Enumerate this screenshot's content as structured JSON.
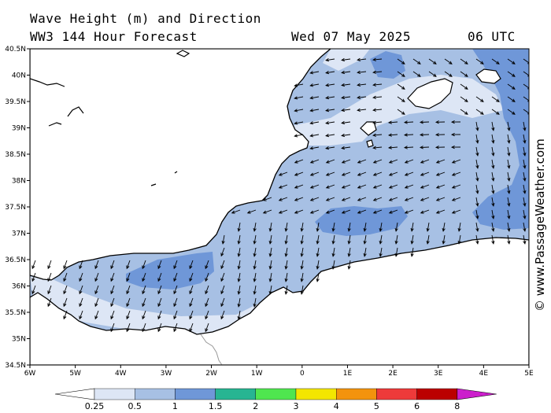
{
  "header": {
    "line1": "Wave Height (m) and Direction",
    "line2": "WW3 144 Hour Forecast",
    "date": "Wed 07 May 2025",
    "time": "06 UTC"
  },
  "watermark": "© www.PassageWeather.com",
  "map": {
    "lon_range": [
      -6,
      5
    ],
    "lat_range": [
      34.5,
      40.5
    ],
    "lat_labels": [
      "40.5N",
      "40N",
      "39.5N",
      "39N",
      "38.5N",
      "38N",
      "37.5N",
      "37N",
      "36.5N",
      "36N",
      "35.5N",
      "35N",
      "34.5N"
    ],
    "lon_labels": [
      "6W",
      "5W",
      "4W",
      "3W",
      "2W",
      "1W",
      "0",
      "1E",
      "2E",
      "3E",
      "4E",
      "5E"
    ],
    "land_color": "#ffffff",
    "coast_color": "#000000",
    "arrow_color": "#000000"
  },
  "colorbar": {
    "colors": [
      "#dde6f5",
      "#a7c0e4",
      "#6f97d8",
      "#27b592",
      "#4fe64f",
      "#f3e600",
      "#f3930d",
      "#ee3a3a",
      "#bb0000",
      "#cc1fcc"
    ],
    "labels": [
      "0.25",
      "0.5",
      "1",
      "1.5",
      "2",
      "3",
      "4",
      "5",
      "6",
      "8"
    ]
  }
}
